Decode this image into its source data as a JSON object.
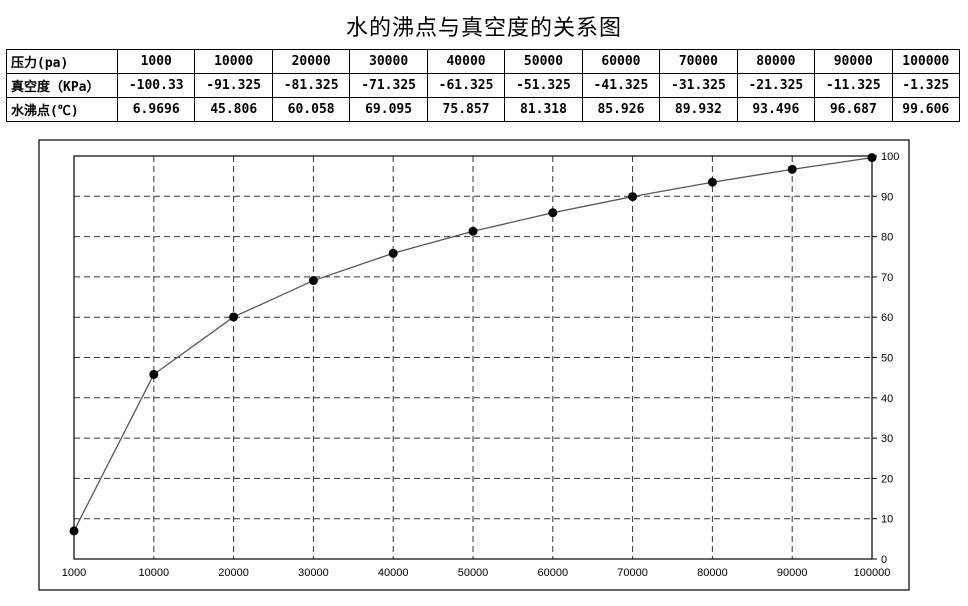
{
  "title": "水的沸点与真空度的关系图",
  "table": {
    "rows": [
      {
        "label": "压力(pa)",
        "cells": [
          "1000",
          "10000",
          "20000",
          "30000",
          "40000",
          "50000",
          "60000",
          "70000",
          "80000",
          "90000",
          "100000"
        ]
      },
      {
        "label": "真空度（KPa）",
        "cells": [
          "-100.33",
          "-91.325",
          "-81.325",
          "-71.325",
          "-61.325",
          "-51.325",
          "-41.325",
          "-31.325",
          "-21.325",
          "-11.325",
          "-1.325"
        ]
      },
      {
        "label": "水沸点(℃)",
        "cells": [
          "6.9696",
          "45.806",
          "60.058",
          "69.095",
          "75.857",
          "81.318",
          "85.926",
          "89.932",
          "93.496",
          "96.687",
          "99.606"
        ]
      }
    ]
  },
  "chart_data": {
    "type": "line",
    "categories": [
      "1000",
      "10000",
      "20000",
      "30000",
      "40000",
      "50000",
      "60000",
      "70000",
      "80000",
      "90000",
      "100000"
    ],
    "series": [
      {
        "values": [
          6.9696,
          45.806,
          60.058,
          69.095,
          75.857,
          81.318,
          85.926,
          89.932,
          93.496,
          96.687,
          99.606
        ],
        "color": "#000000"
      }
    ],
    "ylim": [
      0,
      100
    ],
    "yticks": [
      0,
      10,
      20,
      30,
      40,
      50,
      60,
      70,
      80,
      90,
      100
    ],
    "ytick_side": "right",
    "grid": "dashed",
    "colors": {
      "line": "#555555",
      "marker": "#000000",
      "grid": "#333333",
      "frame": "#000000"
    }
  }
}
